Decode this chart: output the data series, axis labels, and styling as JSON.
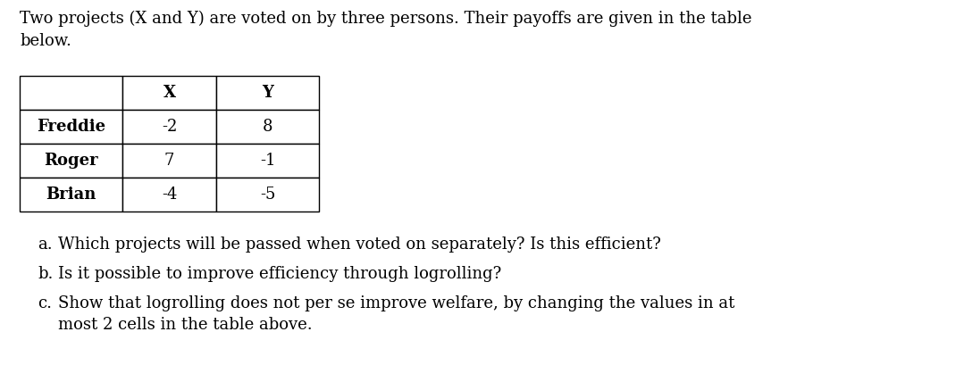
{
  "title_text": "Two projects (X and Y) are voted on by three persons. Their payoffs are given in the table\nbelow.",
  "table_headers": [
    "",
    "X",
    "Y"
  ],
  "table_rows": [
    [
      "Freddie",
      "-2",
      "8"
    ],
    [
      "Roger",
      "7",
      "-1"
    ],
    [
      "Brian",
      "-4",
      "-5"
    ]
  ],
  "questions": [
    [
      "a.",
      "Which projects will be passed when voted on separately? Is this efficient?"
    ],
    [
      "b.",
      "Is it possible to improve efficiency through logrolling?"
    ],
    [
      "c.",
      "Show that logrolling does not per se improve welfare, by changing the values in at\nmost 2 cells in the table above."
    ]
  ],
  "bg_color": "#ffffff",
  "text_color": "#000000",
  "title_fontsize": 13.0,
  "question_fontsize": 13.0,
  "table_fontsize": 13.0
}
